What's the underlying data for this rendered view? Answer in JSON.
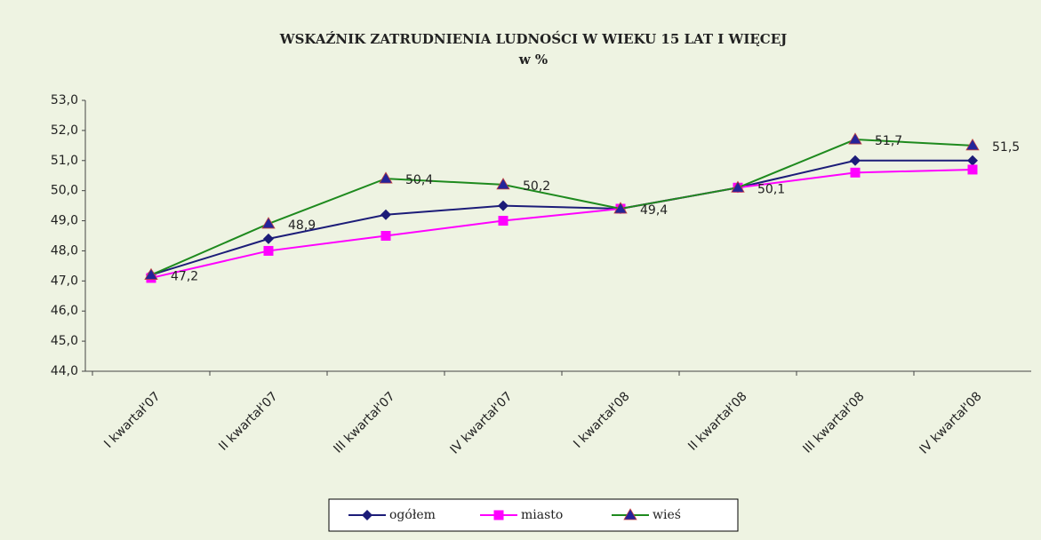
{
  "chart_data": {
    "type": "line",
    "title": "WSKAŹNIK ZATRUDNIENIA  LUDNOŚCI W WIEKU 15 LAT I WIĘCEJ",
    "subtitle": "w %",
    "categories": [
      "I kwartał'07",
      "II kwartał'07",
      "III kwartał'07",
      "IV kwartał'07",
      "I kwartał'08",
      "II kwartał'08",
      "III kwartał'08",
      "IV kwartał'08"
    ],
    "series": [
      {
        "name": "ogółem",
        "color": "#1c1c78",
        "marker": "diamond",
        "marker_color": "#1c1c78",
        "values": [
          47.2,
          48.4,
          49.2,
          49.5,
          49.4,
          50.1,
          51.0,
          51.0
        ]
      },
      {
        "name": "miasto",
        "color": "#ff00ff",
        "marker": "square",
        "marker_color": "#ff00ff",
        "values": [
          47.1,
          48.0,
          48.5,
          49.0,
          49.4,
          50.1,
          50.6,
          50.7
        ]
      },
      {
        "name": "wieś",
        "color": "#1e8a1e",
        "marker": "triangle",
        "marker_color": "#24249a",
        "values": [
          47.2,
          48.9,
          50.4,
          50.2,
          49.4,
          50.1,
          51.7,
          51.5
        ],
        "value_labels": [
          "47,2",
          "48,9",
          "50,4",
          "50,2",
          "49,4",
          "50,1",
          "51,7",
          "51,5"
        ]
      }
    ],
    "ylim": [
      44,
      53
    ],
    "yticks": [
      {
        "value": 44,
        "label": "44,0"
      },
      {
        "value": 45,
        "label": "45,0"
      },
      {
        "value": 46,
        "label": "46,0"
      },
      {
        "value": 47,
        "label": "47,0"
      },
      {
        "value": 48,
        "label": "48,0"
      },
      {
        "value": 49,
        "label": "49,0"
      },
      {
        "value": 50,
        "label": "50,0"
      },
      {
        "value": 51,
        "label": "51,0"
      },
      {
        "value": 52,
        "label": "52,0"
      },
      {
        "value": 53,
        "label": "53,0"
      }
    ],
    "grid": false,
    "legend": "bottom"
  }
}
